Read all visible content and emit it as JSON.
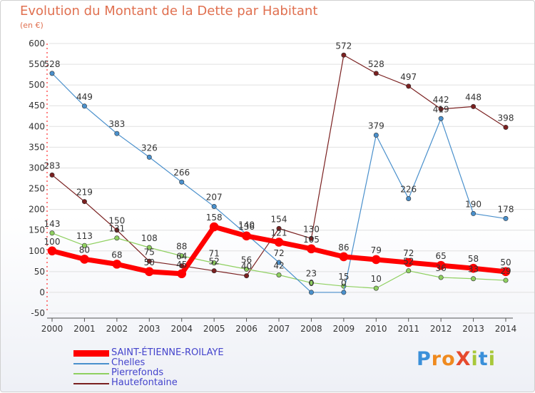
{
  "title": "Evolution du Montant de la Dette par Habitant",
  "subtitle": "(en €)",
  "brand": {
    "letters": [
      {
        "ch": "P",
        "color": "#3a8fd9"
      },
      {
        "ch": "r",
        "color": "#ef8a1f"
      },
      {
        "ch": "o",
        "color": "#ef8a1f"
      },
      {
        "ch": "X",
        "color": "#e64a2e"
      },
      {
        "ch": "i",
        "color": "#a8c83a"
      },
      {
        "ch": "t",
        "color": "#3a8fd9"
      },
      {
        "ch": "i",
        "color": "#a8c83a"
      }
    ]
  },
  "chart_data": {
    "type": "line",
    "categories": [
      "2000",
      "2001",
      "2002",
      "2003",
      "2004",
      "2005",
      "2006",
      "2007",
      "2008",
      "2009",
      "2010",
      "2011",
      "2012",
      "2013",
      "2014"
    ],
    "ylim": [
      -50,
      600
    ],
    "yticks": [
      "-50",
      "0",
      "50",
      "100",
      "150",
      "200",
      "250",
      "300",
      "350",
      "400",
      "450",
      "500",
      "550",
      "600"
    ],
    "grid": "horizontal",
    "legend_position": "bottom-left",
    "series": [
      {
        "name": "Hautefontaine",
        "color": "#7a2020",
        "width": 1.2,
        "values": [
          283,
          219,
          150,
          75,
          64,
          52,
          40,
          154,
          130,
          572,
          528,
          497,
          442,
          448,
          398
        ],
        "labels": [
          "283",
          "219",
          "150",
          "75",
          "64",
          "52",
          "40",
          "154",
          "130",
          "572",
          "528",
          "497",
          "442",
          "448",
          "398"
        ]
      },
      {
        "name": "Pierrefonds",
        "color": "#8fd060",
        "width": 1.2,
        "values": [
          143,
          113,
          131,
          108,
          88,
          71,
          56,
          42,
          23,
          15,
          10,
          52,
          36,
          33,
          29
        ],
        "labels": [
          "143",
          "113",
          "131",
          "108",
          "88",
          "71",
          "56",
          "42",
          "23",
          "15",
          "10",
          "52",
          "36",
          "33",
          "29"
        ]
      },
      {
        "name": "Chelles",
        "color": "#4a90cc",
        "width": 1.2,
        "values": [
          528,
          449,
          383,
          326,
          266,
          207,
          140,
          72,
          0,
          0,
          379,
          226,
          419,
          190,
          178
        ],
        "labels": [
          "528",
          "449",
          "383",
          "326",
          "266",
          "207",
          "140",
          "72",
          "0",
          "0",
          "379",
          "226",
          "419",
          "190",
          "178"
        ]
      },
      {
        "name": "SAINT-ÉTIENNE-ROILAYE",
        "color": "#ff0000",
        "width": 7,
        "values": [
          100,
          80,
          68,
          50,
          45,
          158,
          136,
          121,
          105,
          86,
          79,
          72,
          65,
          58,
          50
        ],
        "labels": [
          "100",
          "80",
          "68",
          "50",
          "45",
          "158",
          "136",
          "121",
          "105",
          "86",
          "79",
          "72",
          "65",
          "58",
          "50"
        ]
      }
    ]
  }
}
